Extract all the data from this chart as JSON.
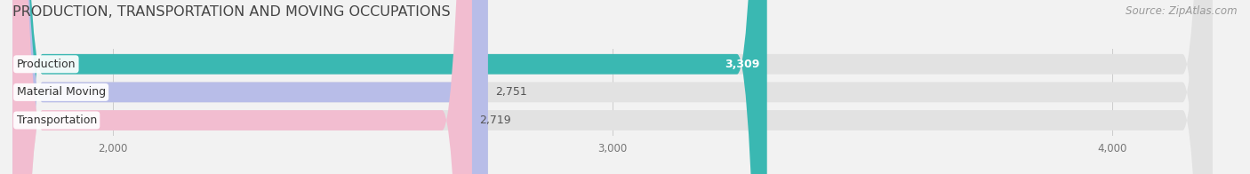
{
  "title": "PRODUCTION, TRANSPORTATION AND MOVING OCCUPATIONS",
  "source": "Source: ZipAtlas.com",
  "categories": [
    "Production",
    "Material Moving",
    "Transportation"
  ],
  "values": [
    3309,
    2751,
    2719
  ],
  "bar_colors": [
    "#3ab8b2",
    "#b8bde8",
    "#f2bdd0"
  ],
  "value_labels": [
    "3,309",
    "2,751",
    "2,719"
  ],
  "value_inside": [
    true,
    false,
    false
  ],
  "xlim_left": 1800,
  "xlim_right": 4200,
  "xticks": [
    2000,
    3000,
    4000
  ],
  "xtick_labels": [
    "2,000",
    "3,000",
    "4,000"
  ],
  "background_color": "#f2f2f2",
  "bar_bg_color": "#e2e2e2",
  "title_fontsize": 11.5,
  "label_fontsize": 9,
  "value_fontsize": 9,
  "source_fontsize": 8.5
}
